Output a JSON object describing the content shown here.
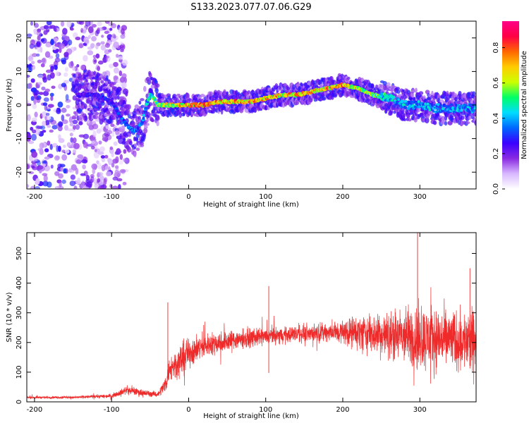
{
  "figure": {
    "title": "S133.2023.077.07.06.G29"
  },
  "chart_data": [
    {
      "type": "heatmap",
      "xlabel": "Height of straight line (km)",
      "ylabel": "Frequency (Hz)",
      "xlim": [
        -210,
        373
      ],
      "ylim": [
        -25,
        25
      ],
      "xticks": [
        -200,
        -100,
        0,
        100,
        200,
        300
      ],
      "yticks": [
        -20,
        -10,
        0,
        10,
        20
      ],
      "colorbar": {
        "label": "Normalized spectral amplitude",
        "range": [
          0,
          0.95
        ],
        "ticks": [
          0.0,
          0.2,
          0.4,
          0.6,
          0.8
        ],
        "colormap": [
          "#ffffff",
          "#d8b8ff",
          "#8a2be2",
          "#3a00ff",
          "#0066ff",
          "#00ddff",
          "#00ff66",
          "#ccff00",
          "#ffcc00",
          "#ff6600",
          "#ff0044",
          "#ff0088"
        ]
      },
      "ridge": {
        "x": [
          -140,
          -120,
          -100,
          -90,
          -80,
          -70,
          -60,
          -55,
          -50,
          -45,
          -40,
          -30,
          -20,
          0,
          20,
          40,
          60,
          80,
          100,
          120,
          140,
          160,
          180,
          200,
          220,
          240,
          260,
          280,
          300,
          320,
          340,
          360,
          373
        ],
        "frequency": [
          3,
          3,
          1,
          -3,
          -6,
          -8,
          -5,
          0,
          3,
          2,
          0,
          0,
          0,
          0,
          0,
          1,
          1,
          1,
          2,
          3,
          3,
          4,
          5,
          6,
          5,
          3,
          2,
          0,
          0,
          -1,
          -1,
          -1,
          -1
        ],
        "amplitude": [
          0.3,
          0.35,
          0.35,
          0.4,
          0.45,
          0.45,
          0.45,
          0.5,
          0.6,
          0.65,
          0.75,
          0.8,
          0.85,
          0.9,
          0.9,
          0.9,
          0.9,
          0.9,
          0.9,
          0.9,
          0.9,
          0.9,
          0.9,
          0.9,
          0.85,
          0.7,
          0.55,
          0.5,
          0.5,
          0.5,
          0.5,
          0.5,
          0.5
        ]
      }
    },
    {
      "type": "line",
      "xlabel": "Height of straight line (km)",
      "ylabel": "SNR (10 * v/v)",
      "xlim": [
        -210,
        373
      ],
      "ylim": [
        0,
        570
      ],
      "xticks": [
        -200,
        -100,
        0,
        100,
        200,
        300
      ],
      "yticks": [
        0,
        100,
        200,
        300,
        400,
        500
      ],
      "series": [
        {
          "color": "#ee2a2a",
          "x": [
            -210,
            -150,
            -100,
            -80,
            -60,
            -40,
            -30,
            -25,
            -20,
            -10,
            0,
            20,
            40,
            60,
            80,
            100,
            120,
            140,
            160,
            180,
            200,
            220,
            240,
            260,
            280,
            300,
            320,
            340,
            360,
            373
          ],
          "mean": [
            15,
            15,
            20,
            40,
            30,
            25,
            60,
            110,
            120,
            140,
            165,
            190,
            200,
            210,
            215,
            220,
            225,
            230,
            232,
            235,
            235,
            235,
            230,
            225,
            220,
            215,
            215,
            210,
            205,
            200
          ],
          "spread": [
            6,
            6,
            10,
            18,
            18,
            12,
            40,
            60,
            70,
            80,
            75,
            55,
            55,
            50,
            45,
            40,
            38,
            40,
            42,
            45,
            60,
            80,
            100,
            110,
            140,
            160,
            150,
            140,
            150,
            160
          ]
        }
      ],
      "annotations": [
        {
          "x": -27,
          "y": 335
        },
        {
          "x": 104,
          "y": 390
        },
        {
          "x": 297,
          "y": 570
        },
        {
          "x": 365,
          "y": 450
        }
      ]
    }
  ]
}
